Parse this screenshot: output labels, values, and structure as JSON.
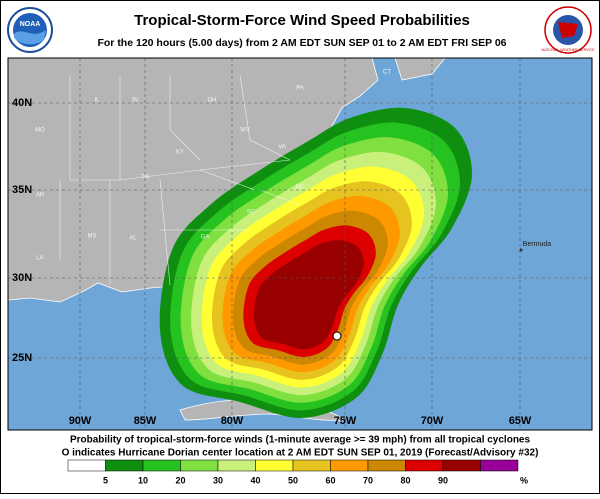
{
  "header": {
    "title": "Tropical-Storm-Force Wind Speed Probabilities",
    "subtitle": "For the 120 hours (5.00 days) from 2 AM EDT SUN SEP 01 to 2 AM EDT FRI SEP 06",
    "left_logo": "NOAA",
    "right_logo": "NATIONAL WEATHER SERVICE"
  },
  "map": {
    "latitude_labels": [
      "40N",
      "35N",
      "30N",
      "25N"
    ],
    "longitude_labels": [
      "90W",
      "85W",
      "80W",
      "75W",
      "70W",
      "65W"
    ],
    "place_labels": [
      "IL",
      "IN",
      "OH",
      "PA",
      "MO",
      "KY",
      "WV",
      "VA",
      "TN",
      "NC",
      "AR",
      "MS",
      "AL",
      "GA",
      "SC",
      "LA",
      "CT",
      "Bermuda"
    ]
  },
  "footer": {
    "note_line_1": "Probability of tropical-storm-force winds (1-minute average >= 39 mph) from all tropical cyclones",
    "note_line_2": "O indicates Hurricane Dorian center location at 2 AM EDT SUN SEP 01, 2019 (Forecast/Advisory #32)"
  },
  "legend": {
    "colors": [
      "#ffffff",
      "#0f8f0f",
      "#26c21f",
      "#7fe03f",
      "#c8f07a",
      "#ffff33",
      "#e6c31e",
      "#ff9900",
      "#cc8800",
      "#dd0000",
      "#990000",
      "#990099"
    ],
    "values": [
      5,
      10,
      20,
      30,
      40,
      50,
      60,
      70,
      80,
      90
    ],
    "unit": "%"
  }
}
